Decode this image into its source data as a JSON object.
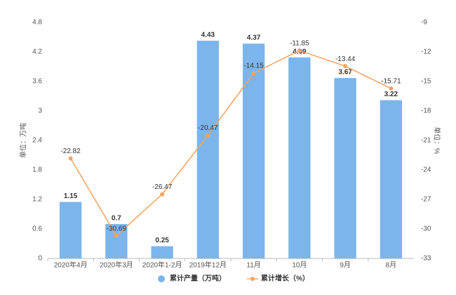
{
  "chart_data": {
    "type": "bar",
    "categories": [
      "2020年4月",
      "2020年3月",
      "2020年1-2月",
      "2019年12月",
      "11月",
      "10月",
      "9月",
      "8月"
    ],
    "series": [
      {
        "name": "累计产量（万吨）",
        "type": "bar",
        "color": "#7cb5ec",
        "values": [
          1.15,
          0.7,
          0.25,
          4.43,
          4.37,
          4.09,
          3.67,
          3.22
        ]
      },
      {
        "name": "累计增长（%）",
        "type": "line",
        "axis": "y2",
        "color": "#f7a35c",
        "values": [
          -22.82,
          -30.69,
          -26.47,
          -20.47,
          -14.15,
          -11.85,
          -13.44,
          -15.71
        ]
      }
    ],
    "ylabel": "单位：万吨",
    "y2label": "单位：%",
    "ylim": [
      0,
      4.8
    ],
    "yticks": [
      0,
      0.6,
      1.2,
      1.8,
      2.4,
      3,
      3.6,
      4.2,
      4.8
    ],
    "y2lim": [
      -33,
      -9
    ],
    "y2ticks": [
      -33,
      -30,
      -27,
      -24,
      -21,
      -18,
      -15,
      -12,
      -9
    ],
    "grid": false,
    "legend": "bottom"
  }
}
